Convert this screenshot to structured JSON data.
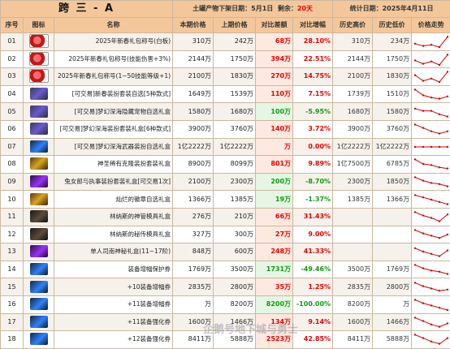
{
  "title": "跨 三 - A",
  "notice": {
    "label": "土罐产物下架日期：",
    "date": "5月1日",
    "remain_label": "剩余：",
    "remain": "20天"
  },
  "stat_date": "统计日期：2025年4月11日",
  "headers": [
    "序号",
    "图标",
    "名称",
    "本期价格",
    "上期价格",
    "对比差额",
    "对比增幅",
    "历史高价",
    "历史低价",
    "价格走势"
  ],
  "rows": [
    {
      "no": "01",
      "icon": "red",
      "name": "2025年新春礼包称号(白板)",
      "cur": "310万",
      "prev": "242万",
      "diff": "68万",
      "pct": "28.10%",
      "high": "310万",
      "low": "234万",
      "neg": false,
      "trend": [
        0.3,
        0.1,
        0.2,
        0.0,
        0.9
      ]
    },
    {
      "no": "02",
      "icon": "red",
      "name": "2025年新春礼包称号(技能伤害+3%)",
      "cur": "2144万",
      "prev": "1750万",
      "diff": "394万",
      "pct": "22.51%",
      "high": "2144万",
      "low": "1750万",
      "neg": false,
      "trend": [
        0.4,
        0.1,
        0.3,
        0.0,
        0.9
      ]
    },
    {
      "no": "03",
      "icon": "red",
      "name": "2025年新春礼包称号(1~50技能等级+1)",
      "cur": "2100万",
      "prev": "1830万",
      "diff": "270万",
      "pct": "14.75%",
      "high": "2100万",
      "low": "1830万",
      "neg": false,
      "trend": [
        0.6,
        0.1,
        0.3,
        0.0,
        0.9
      ]
    },
    {
      "no": "04",
      "icon": "box",
      "name": "[可交易]新春装扮套装自选[5种款式]",
      "cur": "1649万",
      "prev": "1539万",
      "diff": "110万",
      "pct": "7.15%",
      "high": "1739万",
      "low": "1510万",
      "neg": false,
      "trend": [
        0.9,
        0.4,
        0.2,
        0.1,
        0.3
      ]
    },
    {
      "no": "05",
      "icon": "box",
      "name": "[可交易]梦幻深海隐藏宠物自选礼盒",
      "cur": "1580万",
      "prev": "1680万",
      "diff": "100万",
      "pct": "-5.95%",
      "high": "1680万",
      "low": "1580万",
      "neg": true,
      "trend": [
        0.8,
        0.6,
        0.6,
        0.3,
        0.1
      ]
    },
    {
      "no": "06",
      "icon": "box",
      "name": "[可交易]梦幻深海装扮套装礼盒[6种款式]",
      "cur": "3900万",
      "prev": "3760万",
      "diff": "140万",
      "pct": "3.72%",
      "high": "3900万",
      "low": "3760万",
      "neg": false,
      "trend": [
        0.9,
        0.6,
        0.3,
        0.1,
        0.3
      ]
    },
    {
      "no": "07",
      "icon": "blue",
      "name": "[可交易]梦幻深海武器装扮自选礼盒",
      "cur": "1亿2222万",
      "prev": "1亿2222万",
      "diff": "万",
      "pct": "0.00%",
      "high": "1亿2222万",
      "low": "1亿2222万",
      "neg": false,
      "trend": [
        0.5,
        0.5,
        0.5,
        0.5,
        0.5
      ]
    },
    {
      "no": "08",
      "icon": "gold",
      "name": "神圣稀有克隆装扮套装礼盒",
      "cur": "8900万",
      "prev": "8099万",
      "diff": "801万",
      "pct": "9.89%",
      "high": "1亿7500万",
      "low": "6785万",
      "neg": false,
      "trend": [
        0.9,
        0.5,
        0.4,
        0.2,
        0.1
      ]
    },
    {
      "no": "09",
      "icon": "purple",
      "name": "兔女郎与执事装扮套装礼盒[可交易1次]",
      "cur": "2100万",
      "prev": "2300万",
      "diff": "200万",
      "pct": "-8.70%",
      "high": "2300万",
      "low": "1850万",
      "neg": true,
      "trend": [
        0.9,
        0.6,
        0.4,
        0.3,
        0.1
      ]
    },
    {
      "no": "10",
      "icon": "gold",
      "name": "灿烂的徽章自选礼盒",
      "cur": "1366万",
      "prev": "1385万",
      "diff": "19万",
      "pct": "-1.37%",
      "high": "1385万",
      "low": "1366万",
      "neg": true,
      "trend": [
        0.9,
        0.7,
        0.5,
        0.3,
        0.1
      ]
    },
    {
      "no": "11",
      "icon": "dark",
      "name": "林纳斯的神管模具礼盒",
      "cur": "276万",
      "prev": "210万",
      "diff": "66万",
      "pct": "31.43%",
      "high": "",
      "low": "",
      "neg": false,
      "trend": [
        0.9,
        0.6,
        0.4,
        0.1,
        0.7
      ]
    },
    {
      "no": "12",
      "icon": "dark",
      "name": "林纳斯的秘传模具礼盒",
      "cur": "327万",
      "prev": "300万",
      "diff": "27万",
      "pct": "9.00%",
      "high": "",
      "low": "",
      "neg": false,
      "trend": [
        0.9,
        0.6,
        0.4,
        0.2,
        0.5
      ]
    },
    {
      "no": "13",
      "icon": "purple",
      "name": "单人司南神秘礼盒(11~17阶)",
      "cur": "848万",
      "prev": "600万",
      "diff": "248万",
      "pct": "41.33%",
      "high": "",
      "low": "",
      "neg": false,
      "trend": [
        0.8,
        0.5,
        0.3,
        0.1,
        0.6
      ]
    },
    {
      "no": "14",
      "icon": "blue",
      "name": "装备增幅保护券",
      "cur": "1769万",
      "prev": "3500万",
      "diff": "1731万",
      "pct": "-49.46%",
      "high": "3500万",
      "low": "1769万",
      "neg": true,
      "trend": [
        0.9,
        0.6,
        0.4,
        0.3,
        0.1
      ]
    },
    {
      "no": "15",
      "icon": "blue",
      "name": "+10装备增幅券",
      "cur": "2835万",
      "prev": "2800万",
      "diff": "35万",
      "pct": "1.25%",
      "high": "2835万",
      "low": "2800万",
      "neg": false,
      "trend": [
        0.9,
        0.6,
        0.4,
        0.2,
        0.3
      ]
    },
    {
      "no": "16",
      "icon": "blue",
      "name": "+11装备增幅券",
      "cur": "万",
      "prev": "8200万",
      "diff": "8200万",
      "pct": "-100.00%",
      "high": "8200万",
      "low": "万",
      "neg": true,
      "trend": [
        0.9,
        0.6,
        0.4,
        0.2,
        0.0
      ]
    },
    {
      "no": "17",
      "icon": "blue",
      "name": "+11装备强化券",
      "cur": "1600万",
      "prev": "1466万",
      "diff": "134万",
      "pct": "9.14%",
      "high": "1600万",
      "low": "1466万",
      "neg": false,
      "trend": [
        0.9,
        0.6,
        0.3,
        0.1,
        0.4
      ]
    },
    {
      "no": "18",
      "icon": "blue",
      "name": "+12装备强化券",
      "cur": "8411万",
      "prev": "5888万",
      "diff": "2523万",
      "pct": "42.85%",
      "high": "8411万",
      "low": "5888万",
      "neg": false,
      "trend": [
        0.9,
        0.6,
        0.3,
        0.1,
        0.6
      ]
    }
  ],
  "colors": {
    "up": "#e60000",
    "down": "#119911",
    "header": "#f4c79a",
    "spark": "#cc0000"
  },
  "watermark": "企鹅号地下城与勇士"
}
